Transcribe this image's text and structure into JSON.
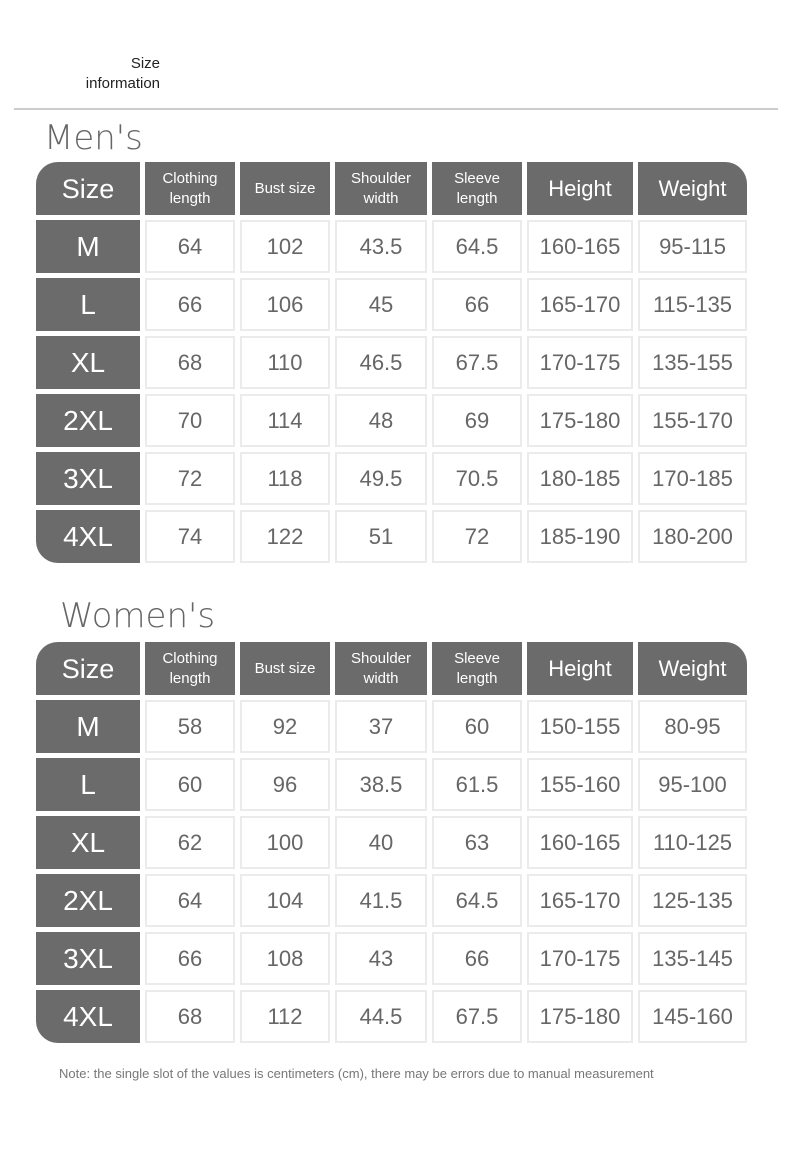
{
  "header": {
    "line1": "Size",
    "line2": "information"
  },
  "columns": [
    "Size",
    "Clothing length",
    "Bust size",
    "Shoulder width",
    "Sleeve length",
    "Height",
    "Weight"
  ],
  "men": {
    "title": "Men's",
    "rows": [
      [
        "M",
        "64",
        "102",
        "43.5",
        "64.5",
        "160-165",
        "95-115"
      ],
      [
        "L",
        "66",
        "106",
        "45",
        "66",
        "165-170",
        "115-135"
      ],
      [
        "XL",
        "68",
        "110",
        "46.5",
        "67.5",
        "170-175",
        "135-155"
      ],
      [
        "2XL",
        "70",
        "114",
        "48",
        "69",
        "175-180",
        "155-170"
      ],
      [
        "3XL",
        "72",
        "118",
        "49.5",
        "70.5",
        "180-185",
        "170-185"
      ],
      [
        "4XL",
        "74",
        "122",
        "51",
        "72",
        "185-190",
        "180-200"
      ]
    ]
  },
  "women": {
    "title": "Women's",
    "rows": [
      [
        "M",
        "58",
        "92",
        "37",
        "60",
        "150-155",
        "80-95"
      ],
      [
        "L",
        "60",
        "96",
        "38.5",
        "61.5",
        "155-160",
        "95-100"
      ],
      [
        "XL",
        "62",
        "100",
        "40",
        "63",
        "160-165",
        "110-125"
      ],
      [
        "2XL",
        "64",
        "104",
        "41.5",
        "64.5",
        "165-170",
        "125-135"
      ],
      [
        "3XL",
        "66",
        "108",
        "43",
        "66",
        "170-175",
        "135-145"
      ],
      [
        "4XL",
        "68",
        "112",
        "44.5",
        "67.5",
        "175-180",
        "145-160"
      ]
    ]
  },
  "note": "Note: the single slot of the values is centimeters (cm), there may be errors due to manual measurement",
  "colors": {
    "header_bg": "#6b6b6b",
    "text": "#666666"
  }
}
